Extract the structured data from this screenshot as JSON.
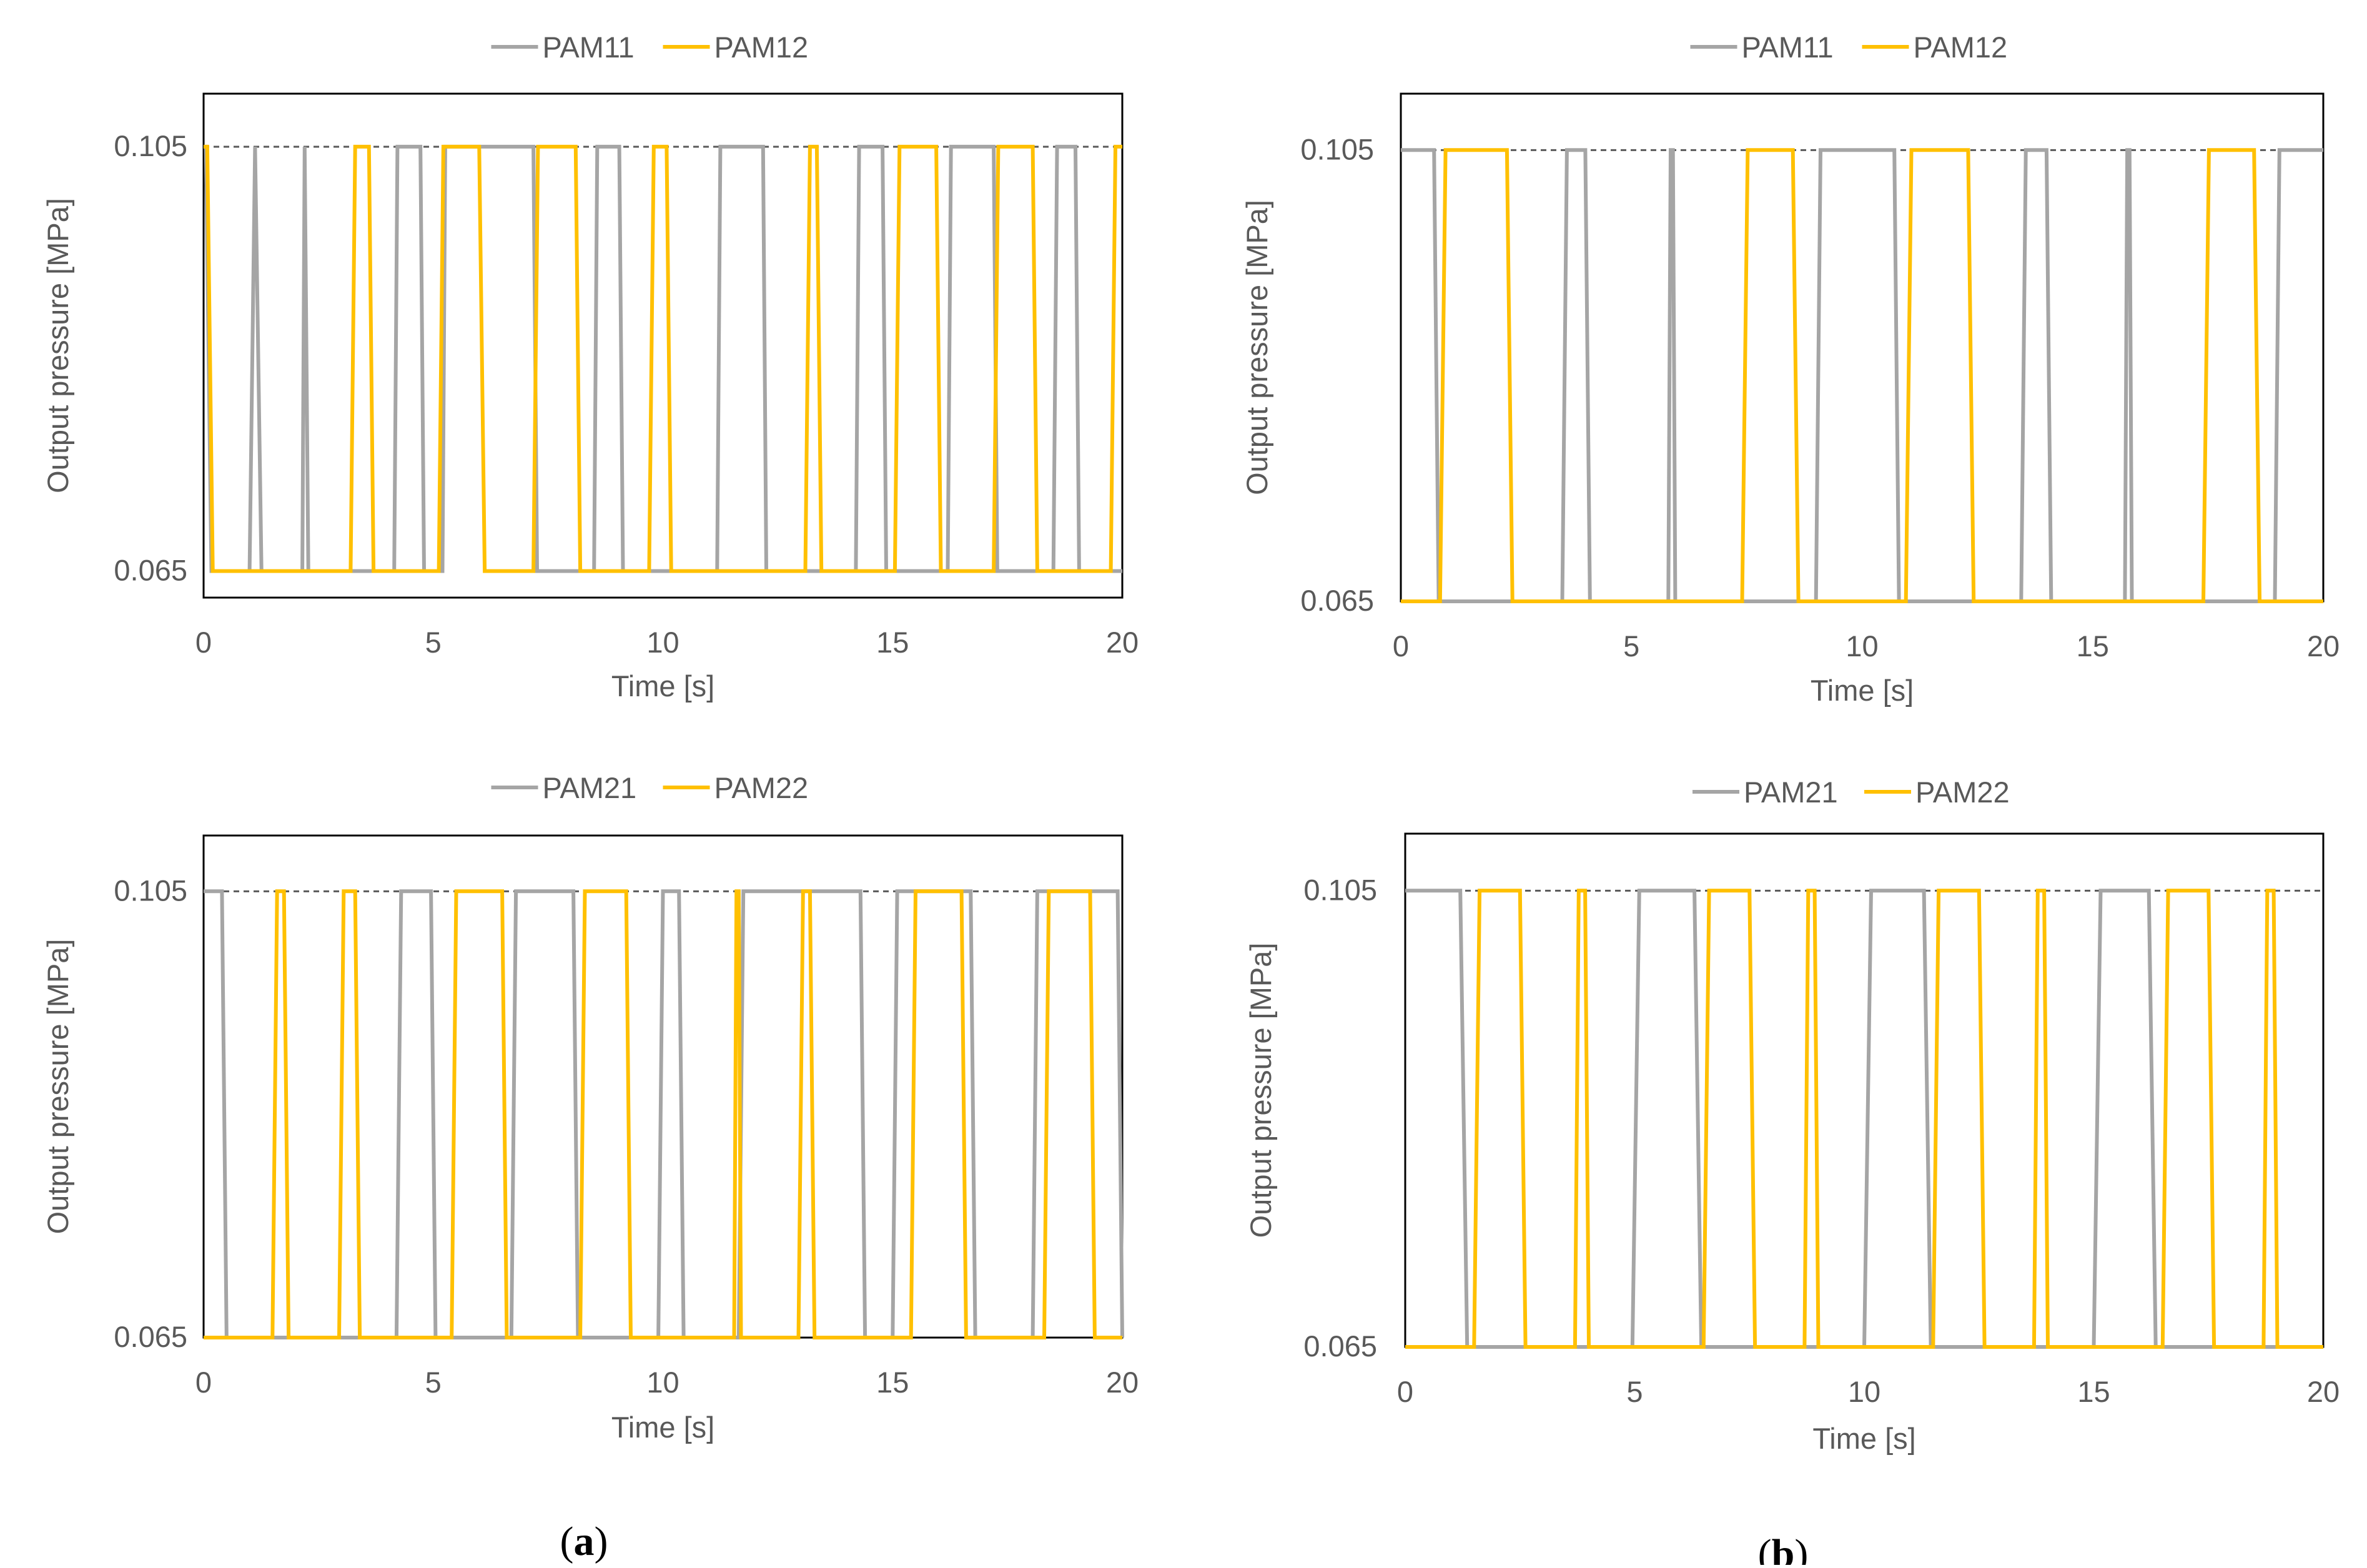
{
  "colors": {
    "series1": "#A5A5A5",
    "series2": "#FFC000",
    "axis": "#000000",
    "text": "#595959",
    "reference": "#595959"
  },
  "captions": [
    "a",
    "b"
  ],
  "chart_data": [
    {
      "type": "line",
      "xlabel": "Time [s]",
      "ylabel": "Output pressure [MPa]",
      "xlim": [
        0,
        20
      ],
      "ylim": [
        0.0625,
        0.11
      ],
      "xticks": [
        "0",
        "5",
        "10",
        "15",
        "20"
      ],
      "yticks": [
        {
          "value": 0.065,
          "label": "0.065"
        },
        {
          "value": 0.105,
          "label": "0.105"
        }
      ],
      "reference_line": 0.105,
      "legend": "top-center",
      "series": [
        {
          "name": "PAM11",
          "x": [
            0,
            0.05,
            0.17,
            1.0,
            1.12,
            1.26,
            2.15,
            2.2,
            2.28,
            4.15,
            4.22,
            4.72,
            4.8,
            5.2,
            5.26,
            7.18,
            7.26,
            8.5,
            8.57,
            9.05,
            9.13,
            11.18,
            11.25,
            12.18,
            12.25,
            14.2,
            14.27,
            14.78,
            14.86,
            16.2,
            16.27,
            17.2,
            17.28,
            18.5,
            18.58,
            18.98,
            19.06,
            20
          ],
          "values": [
            0.105,
            0.105,
            0.065,
            0.065,
            0.105,
            0.065,
            0.065,
            0.105,
            0.065,
            0.065,
            0.105,
            0.105,
            0.065,
            0.065,
            0.105,
            0.105,
            0.065,
            0.065,
            0.105,
            0.105,
            0.065,
            0.065,
            0.105,
            0.105,
            0.065,
            0.065,
            0.105,
            0.105,
            0.065,
            0.065,
            0.105,
            0.105,
            0.065,
            0.065,
            0.105,
            0.105,
            0.065,
            0.065
          ]
        },
        {
          "name": "PAM12",
          "x": [
            0,
            0.08,
            0.2,
            3.2,
            3.3,
            3.6,
            3.7,
            5.12,
            5.22,
            6.0,
            6.12,
            7.18,
            7.28,
            8.1,
            8.2,
            9.7,
            9.8,
            10.08,
            10.18,
            13.1,
            13.2,
            13.35,
            13.45,
            15.05,
            15.15,
            15.95,
            16.05,
            17.2,
            17.3,
            18.05,
            18.15,
            19.75,
            19.85,
            20
          ],
          "values": [
            0.105,
            0.105,
            0.065,
            0.065,
            0.105,
            0.105,
            0.065,
            0.065,
            0.105,
            0.105,
            0.065,
            0.065,
            0.105,
            0.105,
            0.065,
            0.065,
            0.105,
            0.105,
            0.065,
            0.065,
            0.105,
            0.105,
            0.065,
            0.065,
            0.105,
            0.105,
            0.065,
            0.065,
            0.105,
            0.105,
            0.065,
            0.065,
            0.105,
            0.105
          ]
        }
      ]
    },
    {
      "type": "line",
      "xlabel": "Time [s]",
      "ylabel": "Output pressure [MPa]",
      "xlim": [
        0,
        20
      ],
      "ylim": [
        0.065,
        0.11
      ],
      "xticks": [
        "0",
        "5",
        "10",
        "15",
        "20"
      ],
      "yticks": [
        {
          "value": 0.065,
          "label": "0.065"
        },
        {
          "value": 0.105,
          "label": "0.105"
        }
      ],
      "reference_line": 0.105,
      "legend": "top-center",
      "series": [
        {
          "name": "PAM11",
          "x": [
            0,
            0.72,
            0.82,
            3.5,
            3.6,
            4.0,
            4.1,
            5.8,
            5.85,
            5.9,
            5.95,
            9.0,
            9.1,
            10.7,
            10.8,
            13.45,
            13.55,
            14.0,
            14.1,
            15.7,
            15.75,
            15.8,
            15.85,
            18.95,
            19.05,
            20
          ],
          "values": [
            0.105,
            0.105,
            0.065,
            0.065,
            0.105,
            0.105,
            0.065,
            0.065,
            0.105,
            0.105,
            0.065,
            0.065,
            0.105,
            0.105,
            0.065,
            0.065,
            0.105,
            0.105,
            0.065,
            0.065,
            0.105,
            0.105,
            0.065,
            0.065,
            0.105,
            0.105
          ]
        },
        {
          "name": "PAM12",
          "x": [
            0,
            0.85,
            0.97,
            2.3,
            2.42,
            7.4,
            7.52,
            8.5,
            8.62,
            10.95,
            11.07,
            12.3,
            12.42,
            17.4,
            17.52,
            18.5,
            18.62,
            20
          ],
          "values": [
            0.065,
            0.065,
            0.105,
            0.105,
            0.065,
            0.065,
            0.105,
            0.105,
            0.065,
            0.065,
            0.105,
            0.105,
            0.065,
            0.065,
            0.105,
            0.105,
            0.065,
            0.065
          ]
        }
      ]
    },
    {
      "type": "line",
      "xlabel": "Time [s]",
      "ylabel": "Output pressure [MPa]",
      "xlim": [
        0,
        20
      ],
      "ylim": [
        0.065,
        0.11
      ],
      "xticks": [
        "0",
        "5",
        "10",
        "15",
        "20"
      ],
      "yticks": [
        {
          "value": 0.065,
          "label": "0.065"
        },
        {
          "value": 0.105,
          "label": "0.105"
        }
      ],
      "reference_line": 0.105,
      "legend": "top-center",
      "series": [
        {
          "name": "PAM21",
          "x": [
            0,
            0.4,
            0.5,
            4.2,
            4.3,
            4.95,
            5.05,
            6.7,
            6.8,
            8.05,
            8.15,
            9.9,
            10.0,
            10.35,
            10.45,
            11.65,
            11.75,
            14.3,
            14.4,
            15.0,
            15.1,
            16.7,
            16.8,
            18.05,
            18.15,
            19.9,
            20
          ],
          "values": [
            0.105,
            0.105,
            0.065,
            0.065,
            0.105,
            0.105,
            0.065,
            0.065,
            0.105,
            0.105,
            0.065,
            0.065,
            0.105,
            0.105,
            0.065,
            0.065,
            0.105,
            0.105,
            0.065,
            0.065,
            0.105,
            0.105,
            0.065,
            0.065,
            0.105,
            0.105,
            0.065
          ]
        },
        {
          "name": "PAM22",
          "x": [
            0,
            1.5,
            1.6,
            1.75,
            1.85,
            2.95,
            3.05,
            3.3,
            3.4,
            5.4,
            5.5,
            6.5,
            6.6,
            8.2,
            8.3,
            9.2,
            9.3,
            11.55,
            11.6,
            11.65,
            11.7,
            12.95,
            13.05,
            13.2,
            13.3,
            15.4,
            15.5,
            16.5,
            16.6,
            18.3,
            18.4,
            19.3,
            19.4,
            20
          ],
          "values": [
            0.065,
            0.065,
            0.105,
            0.105,
            0.065,
            0.065,
            0.105,
            0.105,
            0.065,
            0.065,
            0.105,
            0.105,
            0.065,
            0.065,
            0.105,
            0.105,
            0.065,
            0.065,
            0.105,
            0.105,
            0.065,
            0.065,
            0.105,
            0.105,
            0.065,
            0.065,
            0.105,
            0.105,
            0.065,
            0.065,
            0.105,
            0.105,
            0.065,
            0.065
          ]
        }
      ]
    },
    {
      "type": "line",
      "xlabel": "Time [s]",
      "ylabel": "Output pressure [MPa]",
      "xlim": [
        0,
        20
      ],
      "ylim": [
        0.065,
        0.11
      ],
      "xticks": [
        "0",
        "5",
        "10",
        "15",
        "20"
      ],
      "yticks": [
        {
          "value": 0.065,
          "label": "0.065"
        },
        {
          "value": 0.105,
          "label": "0.105"
        }
      ],
      "reference_line": 0.105,
      "legend": "top-center",
      "series": [
        {
          "name": "PAM21",
          "x": [
            0,
            1.2,
            1.35,
            4.95,
            5.1,
            6.3,
            6.45,
            10.0,
            10.15,
            11.3,
            11.45,
            15.0,
            15.15,
            16.2,
            16.35,
            20
          ],
          "values": [
            0.105,
            0.105,
            0.065,
            0.065,
            0.105,
            0.105,
            0.065,
            0.065,
            0.105,
            0.105,
            0.065,
            0.065,
            0.105,
            0.105,
            0.065,
            0.065
          ]
        },
        {
          "name": "PAM22",
          "x": [
            0,
            1.5,
            1.62,
            2.5,
            2.62,
            3.7,
            3.78,
            3.92,
            4.0,
            6.5,
            6.62,
            7.5,
            7.62,
            8.7,
            8.78,
            8.92,
            9.0,
            11.5,
            11.62,
            12.5,
            12.62,
            13.7,
            13.78,
            13.92,
            14.0,
            16.5,
            16.62,
            17.5,
            17.62,
            18.7,
            18.78,
            18.92,
            19.0,
            20
          ],
          "values": [
            0.065,
            0.065,
            0.105,
            0.105,
            0.065,
            0.065,
            0.105,
            0.105,
            0.065,
            0.065,
            0.105,
            0.105,
            0.065,
            0.065,
            0.105,
            0.105,
            0.065,
            0.065,
            0.105,
            0.105,
            0.065,
            0.065,
            0.105,
            0.105,
            0.065,
            0.065,
            0.105,
            0.105,
            0.065,
            0.065,
            0.105,
            0.105,
            0.065,
            0.065
          ]
        }
      ]
    }
  ]
}
